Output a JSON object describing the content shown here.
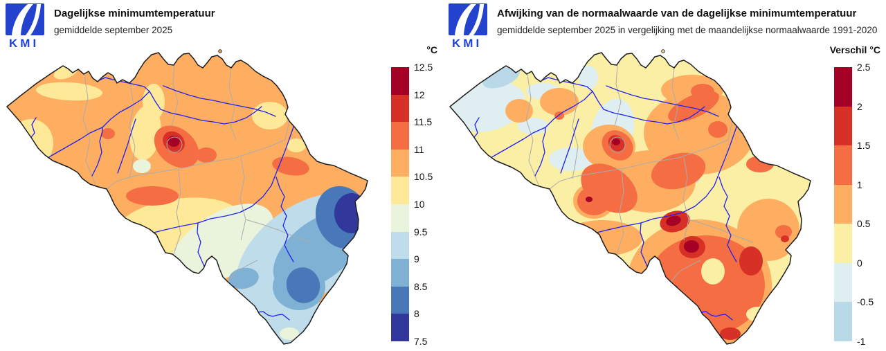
{
  "brand": {
    "logo_text": "KMI",
    "logo_color": "#2343cf"
  },
  "map_style": {
    "outline_color": "#1c1c1c",
    "province_border_color": "#ababab",
    "river_color": "#2020f0",
    "background": "#ffffff"
  },
  "panels": [
    {
      "title": "Dagelijkse minimumtemperatuur",
      "subtitle": "gemiddelde september 2025",
      "legend": {
        "unit_label": "°C",
        "ticks": [
          "12.5",
          "12",
          "11.5",
          "11",
          "10.5",
          "10",
          "9.5",
          "9",
          "8.5",
          "8",
          "7.5"
        ],
        "band_colors": [
          "#a50026",
          "#d73027",
          "#f46d43",
          "#fdae61",
          "#fee999",
          "#eaf3dc",
          "#bfdcea",
          "#7eb1d4",
          "#4878b8",
          "#32379b"
        ]
      }
    },
    {
      "title": "Afwijking van de normaalwaarde van de dagelijkse minimumtemperatuur",
      "subtitle": "gemiddelde september 2025 in vergelijking met de maandelijkse normaalwaarde 1991-2020",
      "legend": {
        "unit_label": "Verschil °C",
        "ticks": [
          "2.5",
          "2",
          "1.5",
          "1",
          "0.5",
          "0",
          "-0.5",
          "-1"
        ],
        "band_colors": [
          "#a50026",
          "#d73027",
          "#f46d43",
          "#fdae61",
          "#fbefa6",
          "#dfeef0",
          "#b9d9e9"
        ]
      }
    }
  ],
  "chart_data": [
    {
      "type": "heatmap",
      "region": "Belgium",
      "title": "Dagelijkse minimumtemperatuur",
      "subtitle": "gemiddelde september 2025",
      "unit": "°C",
      "scale_breaks": [
        7.5,
        8,
        8.5,
        9,
        9.5,
        10,
        10.5,
        11,
        11.5,
        12,
        12.5
      ],
      "scale_colors": [
        "#32379b",
        "#4878b8",
        "#7eb1d4",
        "#bfdcea",
        "#eaf3dc",
        "#fee999",
        "#fdae61",
        "#f46d43",
        "#d73027",
        "#a50026"
      ],
      "legend_position": "right",
      "notable_features": [
        "Maximum above 12 °C in a small core just west of Brussels",
        "10.5-11 °C over most of Flanders and central Belgium",
        "11-11.5 °C patches near Brussels, Liege and south-central Belgium",
        "9-10 °C band across the pre-Ardennes",
        "Minimum below 8 °C in the eastern High Fens near the German border",
        "8-9 °C over the Ardennes and southern Luxembourg province"
      ]
    },
    {
      "type": "heatmap",
      "region": "Belgium",
      "title": "Afwijking van de normaalwaarde van de dagelijkse minimumtemperatuur",
      "subtitle": "gemiddelde september 2025 in vergelijking met de maandelijkse normaalwaarde 1991-2020",
      "unit": "Verschil °C",
      "scale_breaks": [
        -1,
        -0.5,
        0,
        0.5,
        1,
        1.5,
        2,
        2.5
      ],
      "scale_colors": [
        "#b9d9e9",
        "#dfeef0",
        "#fbefa6",
        "#fdae61",
        "#f46d43",
        "#d73027",
        "#a50026"
      ],
      "legend_position": "right",
      "notable_features": [
        "Slightly negative anomaly (-1 to 0 °C) along the coast and parts of the northwest",
        "0 to +0.5 °C over much of Flanders",
        "+1 to +1.5 °C over the Ardennes and the southeast",
        "Cores above +2 °C west of Brussels and in the Entre-Sambre-et-Meuse region",
        "+1.5 to +2 °C spots near the eastern border and the southern tip"
      ]
    }
  ]
}
